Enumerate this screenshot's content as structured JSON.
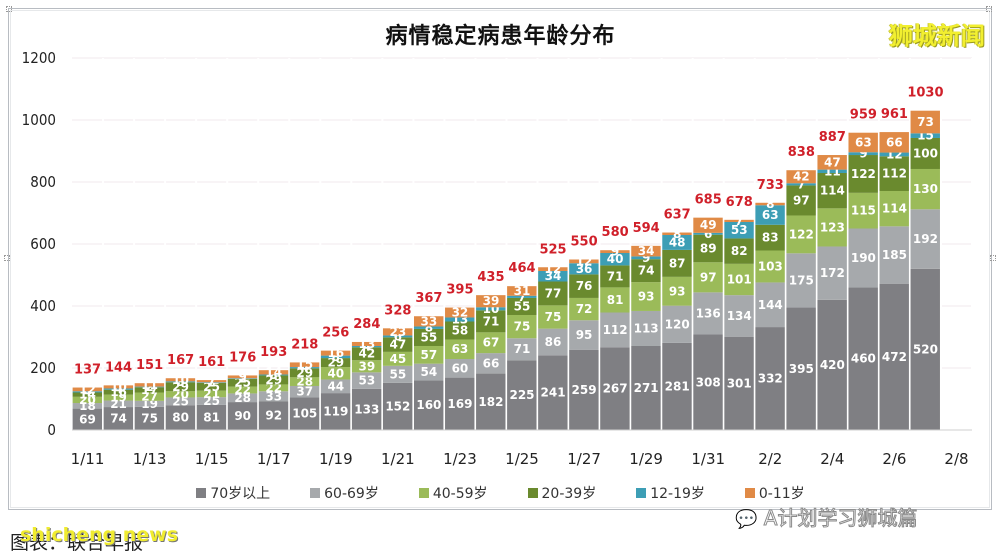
{
  "brand": "狮城新闻",
  "footer": {
    "caption": "图表：联合早报",
    "watermark_left": "shicheng news",
    "watermark_right": "A计划学习狮城篇"
  },
  "chart_data": {
    "type": "bar",
    "stacked": true,
    "title": "病情稳定病患年龄分布",
    "xlabel": "",
    "ylabel": "",
    "ylim": [
      0,
      1200
    ],
    "yticks": [
      0,
      200,
      400,
      600,
      800,
      1000,
      1200
    ],
    "grid": true,
    "legend_position": "bottom",
    "categories": [
      "1/11",
      "1/12",
      "1/13",
      "1/14",
      "1/15",
      "1/16",
      "1/17",
      "1/18",
      "1/19",
      "1/20",
      "1/21",
      "1/22",
      "1/23",
      "1/24",
      "1/25",
      "1/26",
      "1/27",
      "1/28",
      "1/29",
      "1/30",
      "1/31",
      "2/1",
      "2/2",
      "2/3",
      "2/4",
      "2/5",
      "2/6",
      "2/7",
      "2/8"
    ],
    "xtick_labels": [
      "1/11",
      "1/13",
      "1/15",
      "1/17",
      "1/19",
      "1/21",
      "1/23",
      "1/25",
      "1/27",
      "1/29",
      "1/31",
      "2/2",
      "2/4",
      "2/6",
      "2/8"
    ],
    "series": [
      {
        "name": "70岁以上",
        "color": "#7f7f83",
        "values": [
          69,
          74,
          75,
          80,
          81,
          90,
          92,
          105,
          119,
          133,
          152,
          160,
          169,
          182,
          225,
          241,
          259,
          267,
          271,
          281,
          308,
          301,
          332,
          395,
          420,
          460,
          472,
          520,
          null
        ]
      },
      {
        "name": "60-69岁",
        "color": "#a6a9ac",
        "values": [
          18,
          21,
          19,
          25,
          25,
          28,
          33,
          37,
          44,
          53,
          55,
          54,
          60,
          66,
          71,
          86,
          95,
          112,
          113,
          120,
          136,
          134,
          144,
          175,
          172,
          190,
          185,
          192,
          null
        ]
      },
      {
        "name": "40-59岁",
        "color": "#9bbb59",
        "values": [
          20,
          19,
          27,
          20,
          21,
          22,
          22,
          28,
          40,
          39,
          45,
          57,
          63,
          67,
          75,
          75,
          72,
          81,
          93,
          93,
          97,
          101,
          103,
          122,
          123,
          115,
          114,
          130,
          null
        ]
      },
      {
        "name": "20-39岁",
        "color": "#6a8a2e",
        "values": [
          14,
          16,
          17,
          29,
          25,
          25,
          29,
          29,
          29,
          42,
          47,
          55,
          58,
          71,
          55,
          77,
          76,
          71,
          74,
          87,
          89,
          82,
          83,
          97,
          114,
          122,
          112,
          100,
          null
        ]
      },
      {
        "name": "12-19岁",
        "color": "#3d9eb5",
        "values": [
          4,
          4,
          2,
          3,
          2,
          2,
          3,
          4,
          8,
          4,
          6,
          8,
          13,
          10,
          7,
          34,
          36,
          40,
          9,
          48,
          6,
          53,
          63,
          7,
          11,
          9,
          12,
          15,
          null
        ]
      },
      {
        "name": "0-11岁",
        "color": "#e08a46",
        "values": [
          12,
          10,
          11,
          10,
          7,
          9,
          14,
          15,
          16,
          13,
          23,
          33,
          32,
          39,
          31,
          12,
          12,
          9,
          34,
          8,
          49,
          7,
          8,
          42,
          47,
          63,
          66,
          73,
          null
        ]
      }
    ],
    "totals": [
      137,
      144,
      151,
      167,
      161,
      176,
      193,
      218,
      256,
      284,
      328,
      367,
      395,
      435,
      464,
      525,
      550,
      580,
      594,
      637,
      685,
      678,
      733,
      838,
      887,
      959,
      961,
      1030,
      null
    ],
    "total_label_color": "#d0202a"
  }
}
